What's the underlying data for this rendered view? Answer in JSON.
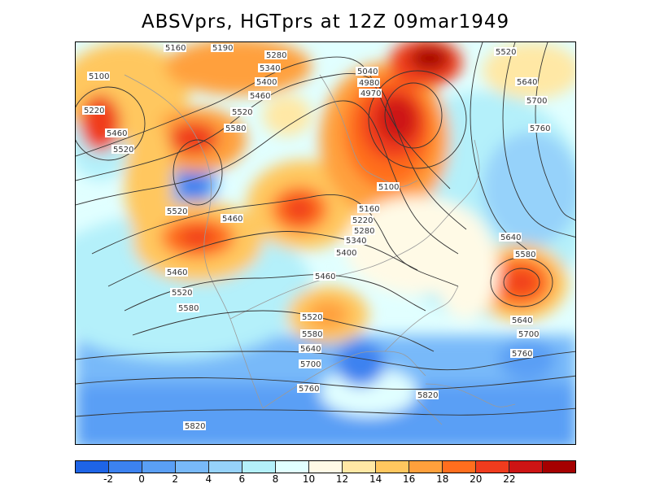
{
  "title": "ABSVprs, HGTprs at 12Z  09mar1949",
  "colorbar": {
    "colors": [
      "#1e64e6",
      "#3c82f0",
      "#5a9ff5",
      "#78b9f9",
      "#96d2fa",
      "#b4f0fa",
      "#e1ffff",
      "#fffae6",
      "#ffe8a5",
      "#ffc75f",
      "#ffa03c",
      "#ff6e1e",
      "#f03c1e",
      "#cd1414",
      "#a50000"
    ],
    "ticks": [
      "-2",
      "0",
      "2",
      "4",
      "6",
      "8",
      "10",
      "12",
      "14",
      "16",
      "18",
      "20",
      "22"
    ]
  },
  "contour_labels": [
    "5100",
    "5160",
    "5190",
    "5220",
    "5280",
    "5340",
    "5400",
    "5460",
    "5520",
    "5580",
    "5640",
    "5700",
    "5760",
    "5820",
    "5040",
    "4980",
    "4970"
  ],
  "map_colors": {
    "ocean_cool": "#8ec0f2",
    "ocean_deep": "#5596e8",
    "land_mid": "#c8ecfa",
    "coast": "#9a9a9a",
    "contour": "#333333"
  },
  "chart_data": {
    "type": "heatmap",
    "title": "ABSVprs, HGTprs at 12Z  09mar1949",
    "colorbar_min": -2,
    "colorbar_max": 22,
    "colorbar_step": 2,
    "contour_field": "HGTprs",
    "shaded_field": "ABSVprs",
    "date": "09mar1949",
    "time": "12Z"
  }
}
